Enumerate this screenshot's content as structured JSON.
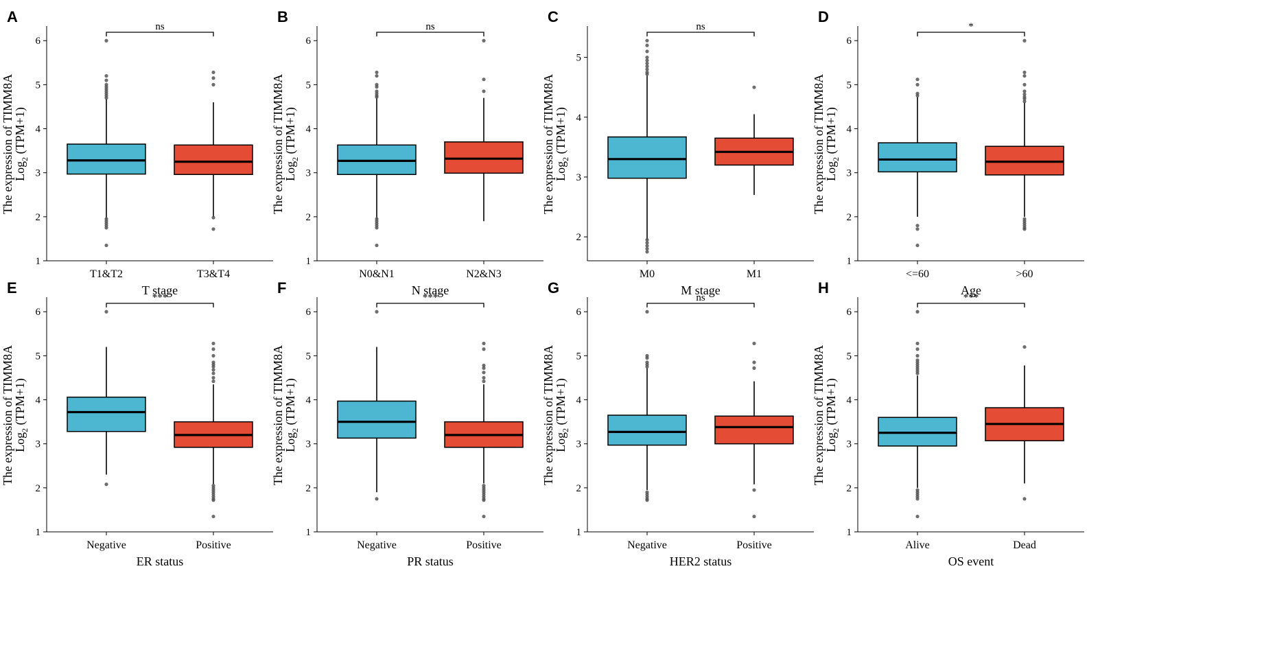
{
  "colors": {
    "group1": "#4db7d1",
    "group2": "#e44c36",
    "outlier": "#555555"
  },
  "y_title": {
    "line1": "The expression  of TIMM8A",
    "line2_prefix": "Log",
    "line2_sub": "2",
    "line2_suffix": " (TPM+1)"
  },
  "chart_data": [
    {
      "letter": "A",
      "type": "boxplot",
      "xlabel": "T stage",
      "ylim": [
        1,
        6.3
      ],
      "yticks": [
        1,
        2,
        3,
        4,
        5,
        6
      ],
      "significance": "ns",
      "groups": [
        {
          "name": "T1&T2",
          "color": "group1",
          "q1": 2.97,
          "median": 3.28,
          "q3": 3.65,
          "whisker_low": 1.95,
          "whisker_high": 4.68,
          "outliers": [
            6.0,
            5.2,
            5.1,
            5.0,
            4.95,
            4.9,
            4.85,
            4.8,
            4.75,
            4.7,
            1.95,
            1.9,
            1.85,
            1.8,
            1.75,
            1.35
          ]
        },
        {
          "name": "T3&T4",
          "color": "group2",
          "q1": 2.96,
          "median": 3.25,
          "q3": 3.63,
          "whisker_low": 2.0,
          "whisker_high": 4.6,
          "outliers": [
            5.28,
            5.15,
            5.0,
            1.98,
            1.72
          ]
        }
      ]
    },
    {
      "letter": "B",
      "type": "boxplot",
      "xlabel": "N stage",
      "ylim": [
        1,
        6.3
      ],
      "yticks": [
        1,
        2,
        3,
        4,
        5,
        6
      ],
      "significance": "ns",
      "groups": [
        {
          "name": "N0&N1",
          "color": "group1",
          "q1": 2.96,
          "median": 3.27,
          "q3": 3.63,
          "whisker_low": 1.95,
          "whisker_high": 4.7,
          "outliers": [
            5.28,
            5.2,
            5.0,
            4.95,
            4.85,
            4.8,
            4.75,
            4.72,
            1.95,
            1.9,
            1.85,
            1.8,
            1.75,
            1.35
          ]
        },
        {
          "name": "N2&N3",
          "color": "group2",
          "q1": 2.99,
          "median": 3.32,
          "q3": 3.7,
          "whisker_low": 1.9,
          "whisker_high": 4.7,
          "outliers": [
            6.0,
            5.12,
            4.85
          ]
        }
      ]
    },
    {
      "letter": "C",
      "type": "boxplot",
      "xlabel": "M stage",
      "ylim": [
        1.6,
        5.5
      ],
      "yticks": [
        2,
        3,
        4,
        5
      ],
      "significance": "ns",
      "groups": [
        {
          "name": "M0",
          "color": "group1",
          "q1": 2.98,
          "median": 3.3,
          "q3": 3.67,
          "whisker_low": 1.95,
          "whisker_high": 4.7,
          "outliers": [
            5.28,
            5.2,
            5.1,
            5.0,
            4.95,
            4.9,
            4.85,
            4.8,
            4.75,
            4.72,
            1.95,
            1.9,
            1.85,
            1.8,
            1.75
          ]
        },
        {
          "name": "M1",
          "color": "group2",
          "q1": 3.2,
          "median": 3.42,
          "q3": 3.65,
          "whisker_low": 2.7,
          "whisker_high": 4.05,
          "outliers": [
            4.5
          ]
        }
      ]
    },
    {
      "letter": "D",
      "type": "boxplot",
      "xlabel": "Age",
      "ylim": [
        1,
        6.3
      ],
      "yticks": [
        1,
        2,
        3,
        4,
        5,
        6
      ],
      "significance": "*",
      "groups": [
        {
          "name": "<=60",
          "color": "group1",
          "q1": 3.02,
          "median": 3.3,
          "q3": 3.68,
          "whisker_low": 2.0,
          "whisker_high": 4.72,
          "outliers": [
            5.12,
            5.0,
            4.8,
            4.75,
            1.8,
            1.72,
            1.35
          ]
        },
        {
          "name": ">60",
          "color": "group2",
          "q1": 2.95,
          "median": 3.25,
          "q3": 3.6,
          "whisker_low": 2.0,
          "whisker_high": 4.6,
          "outliers": [
            6.0,
            5.28,
            5.2,
            5.0,
            4.85,
            4.78,
            4.72,
            4.68,
            4.62,
            1.95,
            1.9,
            1.85,
            1.8,
            1.75,
            1.72
          ]
        }
      ]
    },
    {
      "letter": "E",
      "type": "boxplot",
      "xlabel": "ER status",
      "ylim": [
        1,
        6.3
      ],
      "yticks": [
        1,
        2,
        3,
        4,
        5,
        6
      ],
      "significance": "***",
      "groups": [
        {
          "name": "Negative",
          "color": "group1",
          "q1": 3.28,
          "median": 3.72,
          "q3": 4.06,
          "whisker_low": 2.3,
          "whisker_high": 5.2,
          "outliers": [
            6.0,
            2.08
          ]
        },
        {
          "name": "Positive",
          "color": "group2",
          "q1": 2.92,
          "median": 3.2,
          "q3": 3.5,
          "whisker_low": 2.08,
          "whisker_high": 4.35,
          "outliers": [
            5.28,
            5.15,
            5.0,
            4.85,
            4.8,
            4.75,
            4.68,
            4.6,
            4.5,
            4.42,
            2.05,
            2.0,
            1.95,
            1.9,
            1.85,
            1.8,
            1.75,
            1.72,
            1.35
          ]
        }
      ]
    },
    {
      "letter": "F",
      "type": "boxplot",
      "xlabel": "PR status",
      "ylim": [
        1,
        6.3
      ],
      "yticks": [
        1,
        2,
        3,
        4,
        5,
        6
      ],
      "significance": "***",
      "groups": [
        {
          "name": "Negative",
          "color": "group1",
          "q1": 3.13,
          "median": 3.5,
          "q3": 3.97,
          "whisker_low": 1.9,
          "whisker_high": 5.2,
          "outliers": [
            6.0,
            1.75
          ]
        },
        {
          "name": "Positive",
          "color": "group2",
          "q1": 2.92,
          "median": 3.2,
          "q3": 3.5,
          "whisker_low": 2.1,
          "whisker_high": 4.35,
          "outliers": [
            5.28,
            5.15,
            4.78,
            4.72,
            4.62,
            4.5,
            4.42,
            2.05,
            2.0,
            1.95,
            1.9,
            1.85,
            1.8,
            1.75,
            1.72,
            1.35
          ]
        }
      ]
    },
    {
      "letter": "G",
      "type": "boxplot",
      "xlabel": "HER2 status",
      "ylim": [
        1,
        6.3
      ],
      "yticks": [
        1,
        2,
        3,
        4,
        5,
        6
      ],
      "significance": "ns",
      "groups": [
        {
          "name": "Negative",
          "color": "group1",
          "q1": 2.97,
          "median": 3.27,
          "q3": 3.65,
          "whisker_low": 1.95,
          "whisker_high": 4.72,
          "outliers": [
            6.0,
            5.0,
            4.95,
            4.85,
            4.8,
            4.75,
            1.9,
            1.85,
            1.8,
            1.75,
            1.72
          ]
        },
        {
          "name": "Positive",
          "color": "group2",
          "q1": 3.0,
          "median": 3.38,
          "q3": 3.63,
          "whisker_low": 2.08,
          "whisker_high": 4.42,
          "outliers": [
            5.28,
            4.85,
            4.72,
            1.95,
            1.35
          ]
        }
      ]
    },
    {
      "letter": "H",
      "type": "boxplot",
      "xlabel": "OS event",
      "ylim": [
        1,
        6.3
      ],
      "yticks": [
        1,
        2,
        3,
        4,
        5,
        6
      ],
      "significance": "***",
      "groups": [
        {
          "name": "Alive",
          "color": "group1",
          "q1": 2.95,
          "median": 3.25,
          "q3": 3.6,
          "whisker_low": 2.0,
          "whisker_high": 4.55,
          "outliers": [
            6.0,
            5.28,
            5.15,
            5.0,
            4.9,
            4.85,
            4.8,
            4.75,
            4.7,
            4.65,
            4.6,
            1.95,
            1.9,
            1.85,
            1.8,
            1.75,
            1.35
          ]
        },
        {
          "name": "Dead",
          "color": "group2",
          "q1": 3.07,
          "median": 3.45,
          "q3": 3.82,
          "whisker_low": 2.1,
          "whisker_high": 4.78,
          "outliers": [
            5.2,
            1.75
          ]
        }
      ]
    }
  ]
}
